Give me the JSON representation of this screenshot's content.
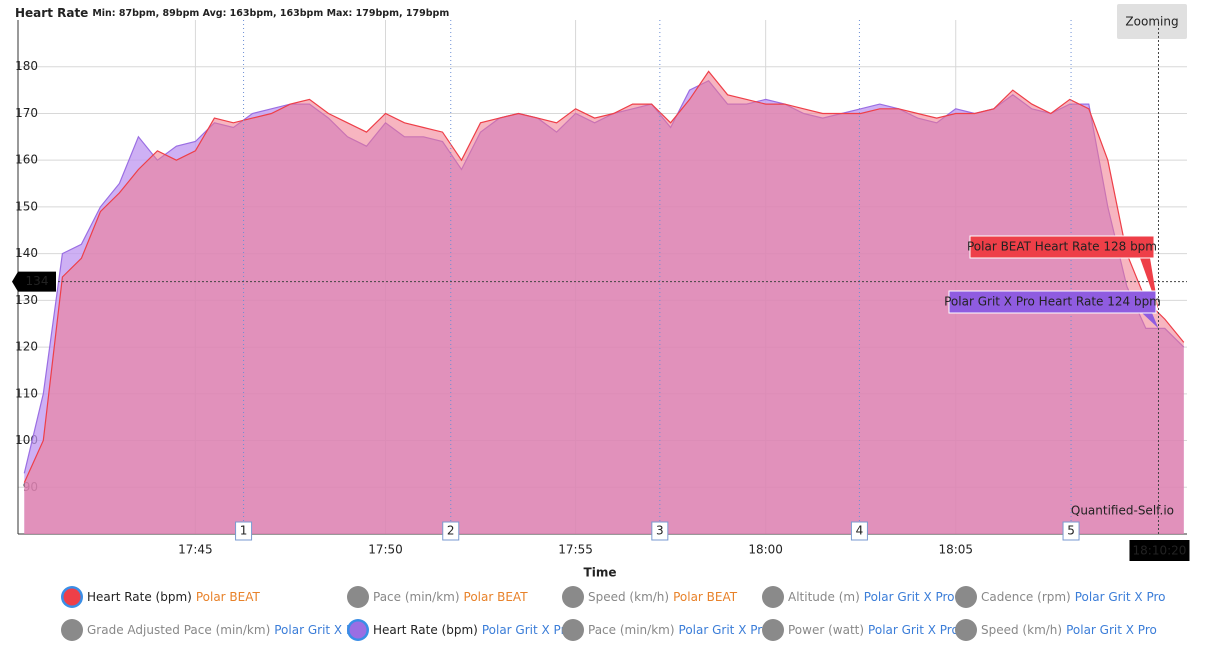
{
  "chart_data": {
    "type": "area",
    "title": "Heart Rate",
    "subtitle": "Min: 87bpm, 89bpm Avg: 163bpm, 163bpm Max: 179bpm, 179bpm",
    "x_label": "Time",
    "button": "Zooming",
    "watermark": "Quantified-Self.io",
    "xlim": [
      "17:40:20",
      "18:11:05"
    ],
    "xticks": [
      {
        "value": "17:45:00",
        "label": "17:45"
      },
      {
        "value": "17:50:00",
        "label": "17:50"
      },
      {
        "value": "17:55:00",
        "label": "17:55"
      },
      {
        "value": "18:00:00",
        "label": "18:00"
      },
      {
        "value": "18:05:00",
        "label": "18:05"
      }
    ],
    "ylim": [
      80,
      190
    ],
    "yticks": [
      90,
      100,
      110,
      120,
      130,
      140,
      150,
      160,
      170,
      180
    ],
    "grid": true,
    "x": [
      "17:40:30",
      "17:41:00",
      "17:41:30",
      "17:42:00",
      "17:42:30",
      "17:43:00",
      "17:43:30",
      "17:44:00",
      "17:44:30",
      "17:45:00",
      "17:45:30",
      "17:46:00",
      "17:46:30",
      "17:47:00",
      "17:47:30",
      "17:48:00",
      "17:48:30",
      "17:49:00",
      "17:49:30",
      "17:50:00",
      "17:50:30",
      "17:51:00",
      "17:51:30",
      "17:52:00",
      "17:52:30",
      "17:53:00",
      "17:53:30",
      "17:54:00",
      "17:54:30",
      "17:55:00",
      "17:55:30",
      "17:56:00",
      "17:56:30",
      "17:57:00",
      "17:57:30",
      "17:58:00",
      "17:58:30",
      "17:59:00",
      "17:59:30",
      "18:00:00",
      "18:00:30",
      "18:01:00",
      "18:01:30",
      "18:02:00",
      "18:02:30",
      "18:03:00",
      "18:03:30",
      "18:04:00",
      "18:04:30",
      "18:05:00",
      "18:05:30",
      "18:06:00",
      "18:06:30",
      "18:07:00",
      "18:07:30",
      "18:08:00",
      "18:08:30",
      "18:09:00",
      "18:09:30",
      "18:10:00",
      "18:10:30",
      "18:11:00"
    ],
    "series": [
      {
        "name": "Polar Grit X Pro",
        "color": "#9a6ee3",
        "fill": "rgba(190,150,240,0.75)",
        "values": [
          93,
          110,
          140,
          142,
          150,
          155,
          165,
          160,
          163,
          164,
          168,
          167,
          170,
          171,
          172,
          172,
          169,
          165,
          163,
          168,
          165,
          165,
          164,
          158,
          166,
          169,
          170,
          169,
          166,
          170,
          168,
          170,
          171,
          172,
          167,
          175,
          177,
          172,
          172,
          173,
          172,
          170,
          169,
          170,
          171,
          172,
          171,
          169,
          168,
          171,
          170,
          171,
          174,
          171,
          170,
          172,
          172,
          150,
          133,
          124,
          124,
          120
        ]
      },
      {
        "name": "Polar BEAT",
        "color": "#ee3f48",
        "fill": "rgba(240,120,140,0.55)",
        "values": [
          91,
          100,
          135,
          139,
          149,
          153,
          158,
          162,
          160,
          162,
          169,
          168,
          169,
          170,
          172,
          173,
          170,
          168,
          166,
          170,
          168,
          167,
          166,
          160,
          168,
          169,
          170,
          169,
          168,
          171,
          169,
          170,
          172,
          172,
          168,
          173,
          179,
          174,
          173,
          172,
          172,
          171,
          170,
          170,
          170,
          171,
          171,
          170,
          169,
          170,
          170,
          171,
          175,
          172,
          170,
          173,
          171,
          160,
          140,
          130,
          126,
          121
        ]
      }
    ],
    "laps": [
      {
        "label": "1",
        "x": "17:46:16"
      },
      {
        "label": "2",
        "x": "17:51:43"
      },
      {
        "label": "3",
        "x": "17:57:13"
      },
      {
        "label": "4",
        "x": "18:02:28"
      },
      {
        "label": "5",
        "x": "18:08:02"
      }
    ],
    "crosshair": {
      "x": "18:10:20",
      "x_label": "18:10:20",
      "y": 134
    },
    "tooltips": [
      {
        "text": "Polar BEAT Heart Rate 128 bpm",
        "value": 128,
        "color": "#ee3f48"
      },
      {
        "text": "Polar Grit X Pro Heart Rate 124 bpm",
        "value": 124,
        "color": "#8f5ce0"
      }
    ],
    "legend": [
      {
        "metric": "Heart Rate (bpm)",
        "device": "Polar BEAT",
        "active": true,
        "color": "#ee3f48"
      },
      {
        "metric": "Pace (min/km)",
        "device": "Polar BEAT",
        "active": false,
        "color": "#8a8a8a"
      },
      {
        "metric": "Speed (km/h)",
        "device": "Polar BEAT",
        "active": false,
        "color": "#8a8a8a"
      },
      {
        "metric": "Altitude (m)",
        "device": "Polar Grit X Pro",
        "active": false,
        "color": "#8a8a8a"
      },
      {
        "metric": "Cadence (rpm)",
        "device": "Polar Grit X Pro",
        "active": false,
        "color": "#8a8a8a"
      },
      {
        "metric": "Grade Adjusted Pace (min/km)",
        "device": "Polar Grit X Pro",
        "active": false,
        "color": "#8a8a8a"
      },
      {
        "metric": "Heart Rate (bpm)",
        "device": "Polar Grit X Pro",
        "active": true,
        "color": "#9a6ee3"
      },
      {
        "metric": "Pace (min/km)",
        "device": "Polar Grit X Pro",
        "active": false,
        "color": "#8a8a8a"
      },
      {
        "metric": "Power (watt)",
        "device": "Polar Grit X Pro",
        "active": false,
        "color": "#8a8a8a"
      },
      {
        "metric": "Speed (km/h)",
        "device": "Polar Grit X Pro",
        "active": false,
        "color": "#8a8a8a"
      }
    ]
  }
}
